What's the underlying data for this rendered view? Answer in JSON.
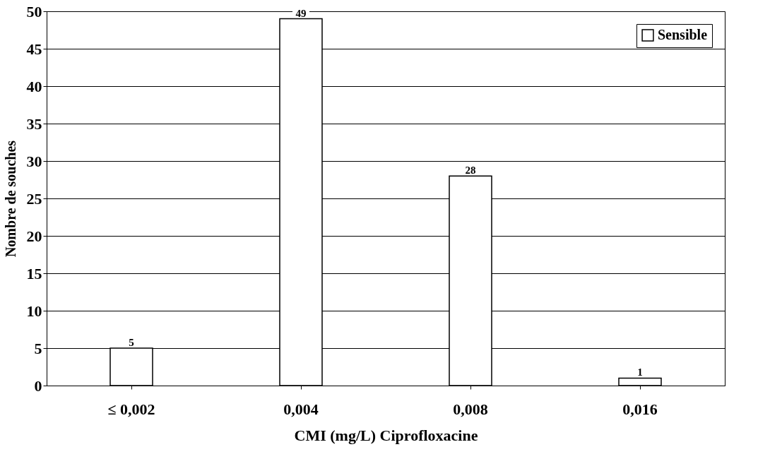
{
  "chart_data": {
    "type": "bar",
    "xlabel": "CMI (mg/L)  Ciprofloxacine",
    "ylabel": "Nombre de souches",
    "categories": [
      "≤ 0,002",
      "0,004",
      "0,008",
      "0,016"
    ],
    "series": [
      {
        "name": "Sensible",
        "color": "#ffffff",
        "values": [
          5,
          49,
          28,
          1
        ]
      }
    ],
    "ylim": [
      0,
      50
    ],
    "yticks": [
      0,
      5,
      10,
      15,
      20,
      25,
      30,
      35,
      40,
      45,
      50
    ],
    "grid": "y",
    "legend": "top right",
    "data_labels": true
  }
}
